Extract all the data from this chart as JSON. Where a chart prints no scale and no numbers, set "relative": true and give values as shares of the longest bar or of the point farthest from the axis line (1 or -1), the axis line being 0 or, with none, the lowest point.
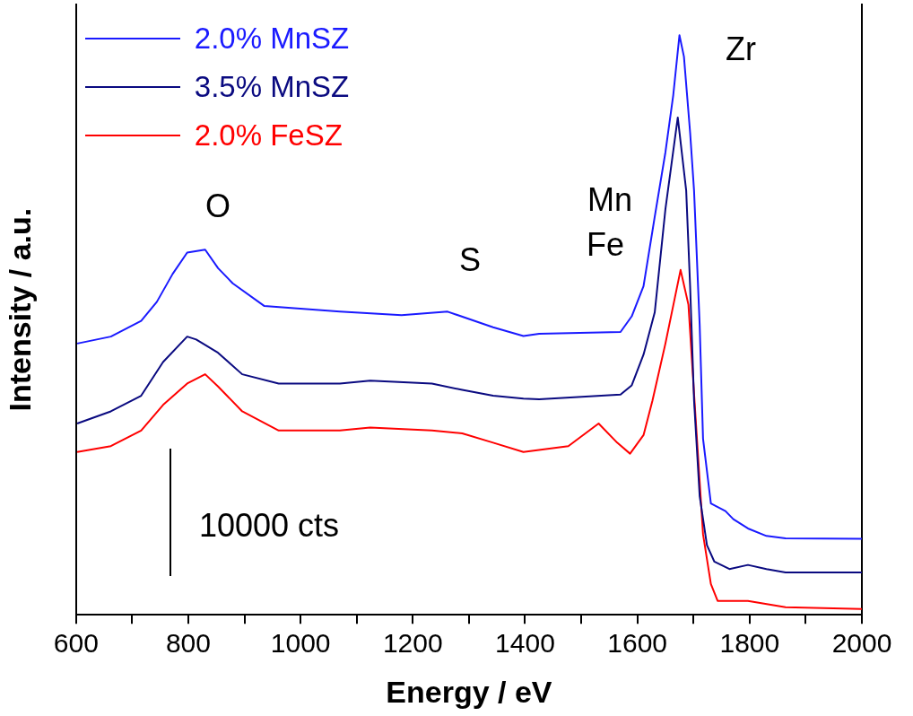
{
  "chart_data": {
    "type": "line",
    "relative": true,
    "xlabel": "Energy / eV",
    "ylabel": "Intensity / a.u.",
    "xlim": [
      600,
      2000
    ],
    "xticks": [
      600,
      {
        "value": 700,
        "label": null
      },
      800,
      {
        "value": 900,
        "label": null
      },
      1000,
      {
        "value": 1100,
        "label": null
      },
      1200,
      {
        "value": 1300,
        "label": null
      },
      1400,
      {
        "value": 1500,
        "label": null
      },
      1600,
      {
        "value": 1700,
        "label": null
      },
      1800,
      {
        "value": 1900,
        "label": null
      },
      2000
    ],
    "legend": "top left",
    "grid": false,
    "marker": "none",
    "line_style": "solid",
    "series": [
      {
        "name": "2.0% MnSZ",
        "color": "#1a1aff",
        "x": [
          602,
          662,
          716,
          744,
          772,
          798,
          830,
          853,
          879,
          935,
          1070,
          1180,
          1262,
          1343,
          1397,
          1425,
          1570,
          1590,
          1611,
          1631,
          1650,
          1664,
          1675,
          1683,
          1694,
          1701,
          1711,
          1717,
          1731,
          1757,
          1771,
          1797,
          1830,
          1864,
          2000
        ],
        "values": [
          0.468,
          0.48,
          0.507,
          0.54,
          0.588,
          0.625,
          0.63,
          0.598,
          0.572,
          0.533,
          0.523,
          0.517,
          0.523,
          0.496,
          0.481,
          0.485,
          0.488,
          0.515,
          0.567,
          0.687,
          0.798,
          0.897,
          1,
          0.963,
          0.832,
          0.732,
          0.501,
          0.304,
          0.192,
          0.179,
          0.165,
          0.149,
          0.136,
          0.132,
          0.131
        ]
      },
      {
        "name": "3.5% MnSZ",
        "color": "#0a0a80",
        "x": [
          602,
          662,
          716,
          755,
          798,
          814,
          853,
          896,
          961,
          1070,
          1124,
          1234,
          1288,
          1343,
          1397,
          1425,
          1570,
          1590,
          1611,
          1631,
          1650,
          1672,
          1687,
          1694,
          1701,
          1711,
          1724,
          1737,
          1764,
          1797,
          1830,
          1864,
          2000
        ],
        "values": [
          0.33,
          0.351,
          0.378,
          0.436,
          0.48,
          0.475,
          0.452,
          0.415,
          0.399,
          0.399,
          0.404,
          0.399,
          0.388,
          0.378,
          0.373,
          0.372,
          0.38,
          0.396,
          0.449,
          0.522,
          0.7,
          0.858,
          0.732,
          0.567,
          0.37,
          0.205,
          0.12,
          0.092,
          0.079,
          0.086,
          0.079,
          0.073,
          0.073
        ]
      },
      {
        "name": "2.0% FeSZ",
        "color": "#ff0000",
        "x": [
          602,
          662,
          716,
          755,
          798,
          830,
          853,
          896,
          961,
          1070,
          1124,
          1234,
          1288,
          1343,
          1397,
          1477,
          1531,
          1564,
          1587,
          1611,
          1627,
          1650,
          1677,
          1691,
          1704,
          1717,
          1731,
          1743,
          1797,
          1864,
          2000
        ],
        "values": [
          0.281,
          0.291,
          0.318,
          0.362,
          0.399,
          0.415,
          0.394,
          0.351,
          0.318,
          0.318,
          0.323,
          0.318,
          0.313,
          0.297,
          0.281,
          0.291,
          0.33,
          0.297,
          0.278,
          0.31,
          0.37,
          0.468,
          0.595,
          0.535,
          0.336,
          0.139,
          0.053,
          0.024,
          0.024,
          0.013,
          0.01
        ]
      }
    ],
    "annotations": [
      "O",
      "S",
      "Mn",
      "Fe",
      "Zr",
      "10000 cts"
    ]
  }
}
